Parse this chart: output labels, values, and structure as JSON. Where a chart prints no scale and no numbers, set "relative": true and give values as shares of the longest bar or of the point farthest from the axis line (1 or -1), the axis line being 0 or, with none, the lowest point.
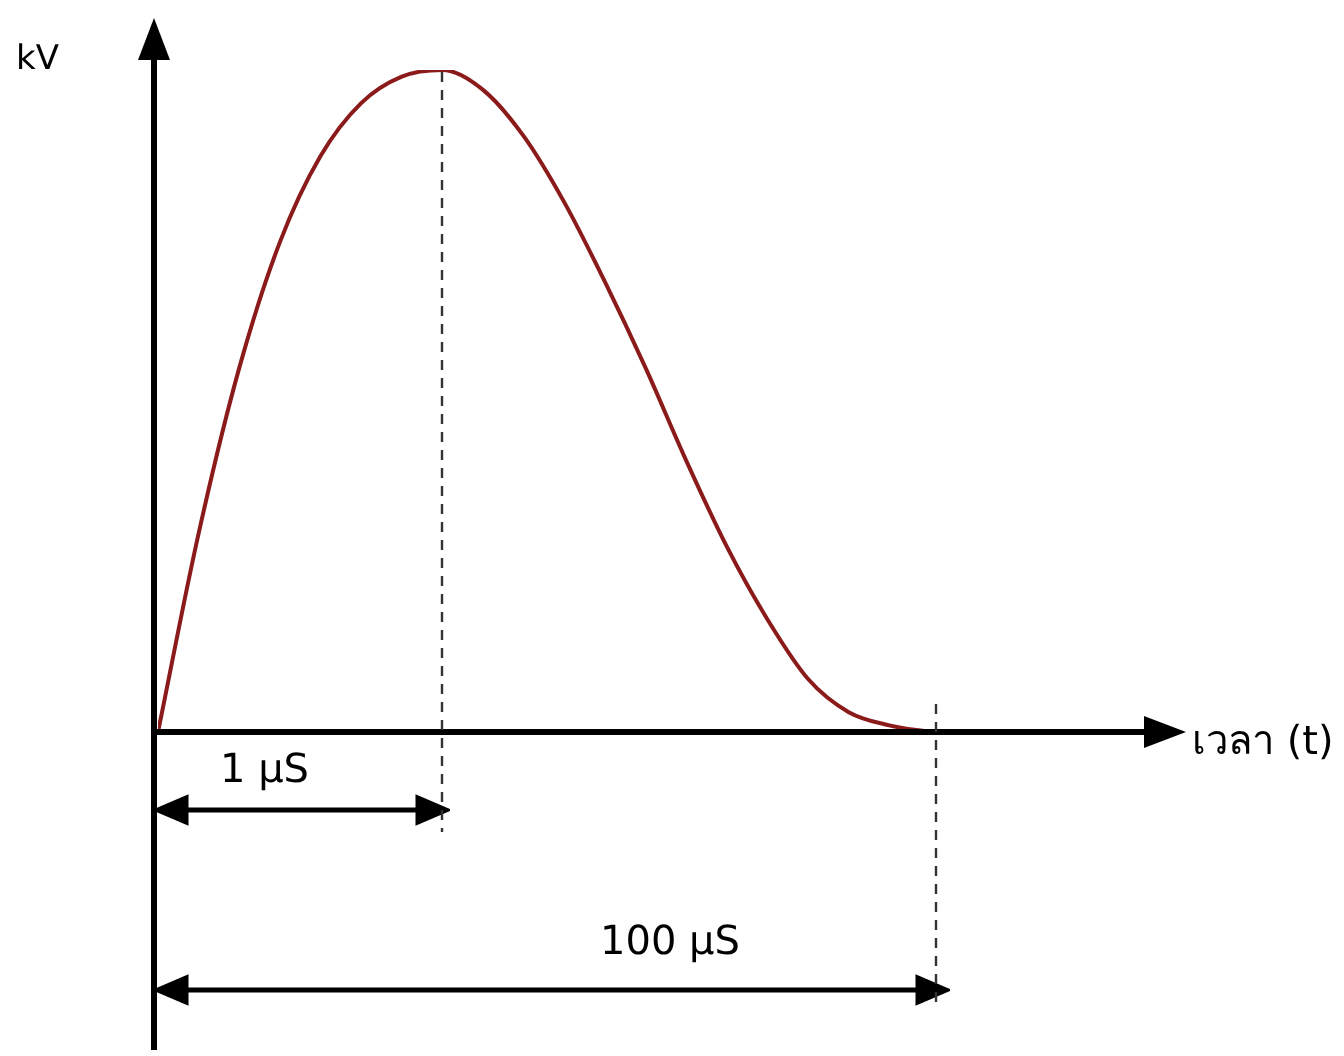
{
  "chart_data": {
    "type": "line",
    "relative": true,
    "ylabel": "kV",
    "categories": [
      null,
      null,
      null,
      null,
      null,
      null,
      null,
      null,
      null,
      null,
      null,
      null,
      null,
      null,
      null,
      null,
      null,
      null,
      null,
      null
    ],
    "values": [
      0,
      0.3,
      0.55,
      0.74,
      0.87,
      0.95,
      0.99,
      1.0,
      0.97,
      0.9,
      0.8,
      0.68,
      0.55,
      0.41,
      0.28,
      0.17,
      0.08,
      0.03,
      0.01,
      0
    ],
    "color": "#8b1a1a",
    "marker": "none",
    "line_style": "solid",
    "legend": false,
    "annotations": [
      "1 µS",
      "100 µS",
      "เวลา (t)"
    ]
  }
}
